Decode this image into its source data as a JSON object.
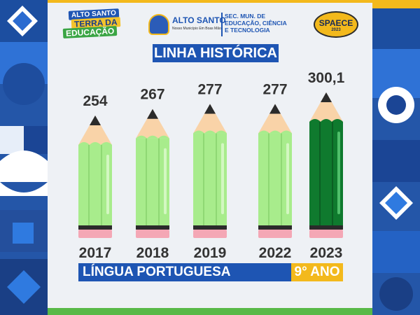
{
  "header": {
    "brand_line1": "ALTO SANTO",
    "brand_line2": "TERRA DA",
    "brand_line3": "EDUCAÇÃO",
    "city_name": "ALTO SANTO",
    "city_tagline": "Nosso Município Em Boas Mãos",
    "secretariat_line1": "SEC. MUN. DE",
    "secretariat_line2": "EDUCAÇÃO, CIÊNCIA",
    "secretariat_line3": "E TECNOLOGIA",
    "assessment_logo": "SPAECE",
    "assessment_year": "2023"
  },
  "footer": {
    "subject": "LÍNGUA PORTUGUESA",
    "grade": "9° ANO"
  },
  "colors": {
    "brand_blue": "#1e55b3",
    "accent_yellow": "#f3b91c",
    "pencil_light_green": "#a8ec8c",
    "pencil_dark_green": "#0f7a2e",
    "pencil_wood": "#f9d3a8",
    "pencil_eraser": "#f4a7b5"
  },
  "chart_data": {
    "type": "bar",
    "title": "LINHA HISTÓRICA",
    "categories": [
      "2017",
      "2018",
      "2019",
      "2022",
      "2023"
    ],
    "value_labels": [
      "254",
      "267",
      "277",
      "277",
      "300,1"
    ],
    "values": [
      254,
      267,
      277,
      277,
      300.1
    ],
    "highlight": "2023",
    "style": "pencils"
  }
}
